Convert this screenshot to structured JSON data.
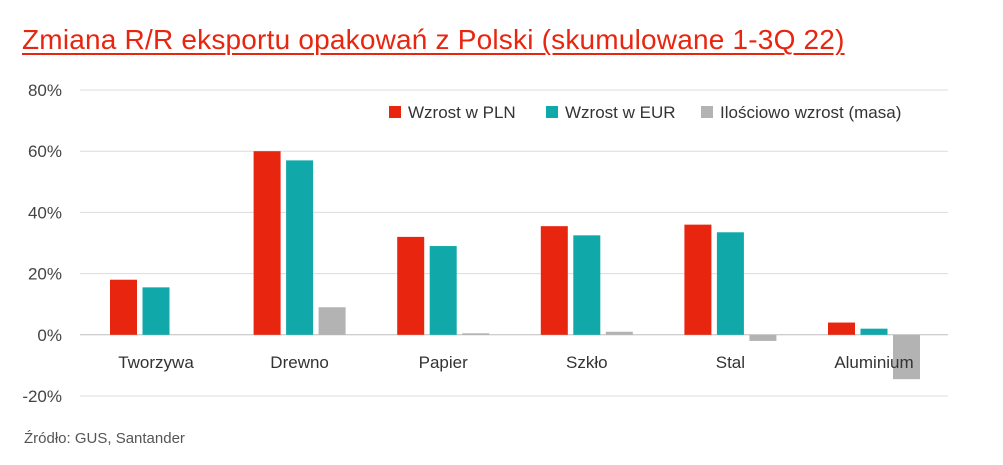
{
  "title": "Zmiana R/R eksportu opakowań z Polski (skumulowane 1-3Q 22)",
  "source": "Źródło: GUS, Santander",
  "chart_data": {
    "type": "bar",
    "categories": [
      "Tworzywa",
      "Drewno",
      "Papier",
      "Szkło",
      "Stal",
      "Aluminium"
    ],
    "series": [
      {
        "name": "Wzrost w PLN",
        "color": "#e8250f",
        "values": [
          18,
          60,
          32,
          35.5,
          36,
          4
        ]
      },
      {
        "name": "Wzrost w EUR",
        "color": "#10a8a8",
        "values": [
          15.5,
          57,
          29,
          32.5,
          33.5,
          2
        ]
      },
      {
        "name": "Ilościowo wzrost (masa)",
        "color": "#b3b3b3",
        "values": [
          0,
          9,
          0.5,
          1,
          -2,
          -14.5
        ]
      }
    ],
    "ylim": [
      -20,
      80
    ],
    "yticks": [
      "-20%",
      "0%",
      "20%",
      "40%",
      "60%",
      "80%"
    ],
    "ytick_values": [
      -20,
      0,
      20,
      40,
      60,
      80
    ],
    "grid": true,
    "legend_position": "top-right"
  }
}
